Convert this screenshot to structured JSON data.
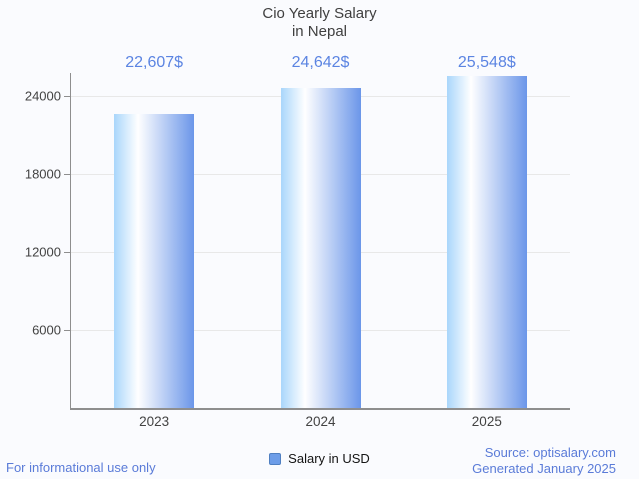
{
  "chart_data": {
    "type": "bar",
    "title": "Cio Yearly Salary",
    "subtitle": "in Nepal",
    "categories": [
      "2023",
      "2024",
      "2025"
    ],
    "series": [
      {
        "name": "Salary in USD",
        "values": [
          22607,
          24642,
          25548
        ],
        "value_labels": [
          "22,607$",
          "24,642$",
          "25,548$"
        ]
      }
    ],
    "xlabel": "",
    "ylabel": "",
    "ylim": [
      0,
      25770
    ],
    "yticks": [
      6000,
      12000,
      18000,
      24000
    ],
    "grid": true,
    "legend_position": "bottom-center"
  },
  "legend": {
    "items": [
      {
        "label": "Salary in USD"
      }
    ]
  },
  "footer": {
    "disclaimer": "For informational use only",
    "source": "Source: optisalary.com",
    "generated": "Generated January 2025"
  },
  "colors": {
    "background": "#fafbfe",
    "title_text": "#3f3f3f",
    "axis_line": "#8e8e8e",
    "grid_line": "#e8e8e8",
    "tick_label": "#424242",
    "value_label": "#5b84e2",
    "footer_text": "#5a7bd8",
    "bar_gradient_left": "#a9d6fb",
    "bar_gradient_mid": "#ffffff",
    "bar_gradient_right": "#6b96e9",
    "legend_marker_fill": "#6d9de8",
    "legend_marker_border": "#4f7fc1"
  }
}
